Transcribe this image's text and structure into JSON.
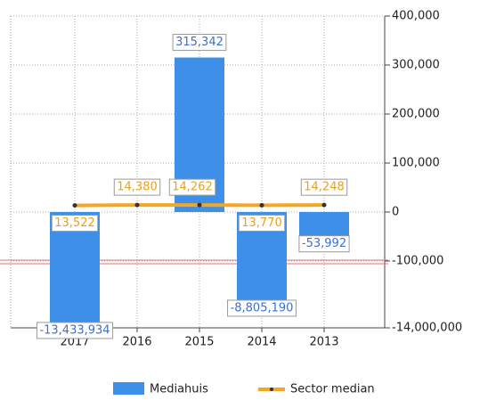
{
  "chart_data": {
    "type": "bar",
    "categories": [
      "2017",
      "2016",
      "2015",
      "2014",
      "2013"
    ],
    "series": [
      {
        "name": "Mediahuis",
        "type": "bar",
        "color": "#3d8fe8",
        "values": [
          -13433934,
          null,
          315342,
          -8805190,
          -53992
        ],
        "value_labels": [
          "-13,433,934",
          null,
          "315,342",
          "-8,805,190",
          "-53,992"
        ]
      },
      {
        "name": "Sector median",
        "type": "line",
        "color": "#f5a623",
        "values": [
          13522,
          14380,
          14262,
          13770,
          14248
        ],
        "value_labels": [
          "13,522",
          "14,380",
          "14,262",
          "13,770",
          "14,248"
        ]
      }
    ],
    "ylim": [
      -14000000,
      400000
    ],
    "yticks": [
      {
        "value": 400000,
        "label": "400,000"
      },
      {
        "value": 300000,
        "label": "300,000"
      },
      {
        "value": 200000,
        "label": "200,000"
      },
      {
        "value": 100000,
        "label": "100,000"
      },
      0,
      {
        "value": -100000,
        "label": "-100,000"
      },
      {
        "value": -14000000,
        "label": "-14,000,000"
      }
    ],
    "grid": true
  }
}
